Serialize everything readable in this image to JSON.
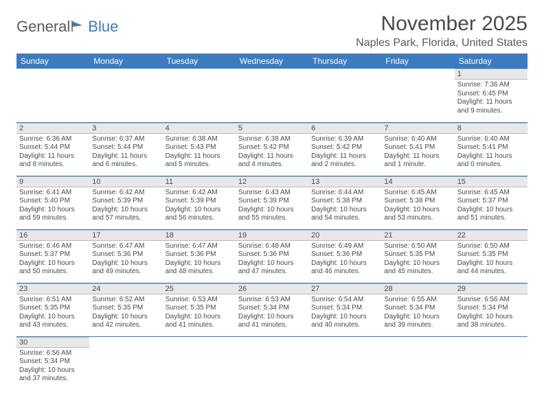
{
  "logo": {
    "text1": "General",
    "text2": "Blue"
  },
  "title": "November 2025",
  "location": "Naples Park, Florida, United States",
  "colors": {
    "header_bg": "#3b7bbf",
    "header_text": "#ffffff",
    "daynum_bg": "#e8e8e8",
    "border": "#3b7bbf",
    "text": "#4a4a4a"
  },
  "day_headers": [
    "Sunday",
    "Monday",
    "Tuesday",
    "Wednesday",
    "Thursday",
    "Friday",
    "Saturday"
  ],
  "weeks": [
    [
      null,
      null,
      null,
      null,
      null,
      null,
      {
        "n": "1",
        "sunrise": "7:36 AM",
        "sunset": "6:45 PM",
        "daylight": "11 hours and 9 minutes."
      }
    ],
    [
      {
        "n": "2",
        "sunrise": "6:36 AM",
        "sunset": "5:44 PM",
        "daylight": "11 hours and 8 minutes."
      },
      {
        "n": "3",
        "sunrise": "6:37 AM",
        "sunset": "5:44 PM",
        "daylight": "11 hours and 6 minutes."
      },
      {
        "n": "4",
        "sunrise": "6:38 AM",
        "sunset": "5:43 PM",
        "daylight": "11 hours and 5 minutes."
      },
      {
        "n": "5",
        "sunrise": "6:38 AM",
        "sunset": "5:42 PM",
        "daylight": "11 hours and 4 minutes."
      },
      {
        "n": "6",
        "sunrise": "6:39 AM",
        "sunset": "5:42 PM",
        "daylight": "11 hours and 2 minutes."
      },
      {
        "n": "7",
        "sunrise": "6:40 AM",
        "sunset": "5:41 PM",
        "daylight": "11 hours and 1 minute."
      },
      {
        "n": "8",
        "sunrise": "6:40 AM",
        "sunset": "5:41 PM",
        "daylight": "11 hours and 0 minutes."
      }
    ],
    [
      {
        "n": "9",
        "sunrise": "6:41 AM",
        "sunset": "5:40 PM",
        "daylight": "10 hours and 59 minutes."
      },
      {
        "n": "10",
        "sunrise": "6:42 AM",
        "sunset": "5:39 PM",
        "daylight": "10 hours and 57 minutes."
      },
      {
        "n": "11",
        "sunrise": "6:42 AM",
        "sunset": "5:39 PM",
        "daylight": "10 hours and 56 minutes."
      },
      {
        "n": "12",
        "sunrise": "6:43 AM",
        "sunset": "5:39 PM",
        "daylight": "10 hours and 55 minutes."
      },
      {
        "n": "13",
        "sunrise": "6:44 AM",
        "sunset": "5:38 PM",
        "daylight": "10 hours and 54 minutes."
      },
      {
        "n": "14",
        "sunrise": "6:45 AM",
        "sunset": "5:38 PM",
        "daylight": "10 hours and 53 minutes."
      },
      {
        "n": "15",
        "sunrise": "6:45 AM",
        "sunset": "5:37 PM",
        "daylight": "10 hours and 51 minutes."
      }
    ],
    [
      {
        "n": "16",
        "sunrise": "6:46 AM",
        "sunset": "5:37 PM",
        "daylight": "10 hours and 50 minutes."
      },
      {
        "n": "17",
        "sunrise": "6:47 AM",
        "sunset": "5:36 PM",
        "daylight": "10 hours and 49 minutes."
      },
      {
        "n": "18",
        "sunrise": "6:47 AM",
        "sunset": "5:36 PM",
        "daylight": "10 hours and 48 minutes."
      },
      {
        "n": "19",
        "sunrise": "6:48 AM",
        "sunset": "5:36 PM",
        "daylight": "10 hours and 47 minutes."
      },
      {
        "n": "20",
        "sunrise": "6:49 AM",
        "sunset": "5:36 PM",
        "daylight": "10 hours and 46 minutes."
      },
      {
        "n": "21",
        "sunrise": "6:50 AM",
        "sunset": "5:35 PM",
        "daylight": "10 hours and 45 minutes."
      },
      {
        "n": "22",
        "sunrise": "6:50 AM",
        "sunset": "5:35 PM",
        "daylight": "10 hours and 44 minutes."
      }
    ],
    [
      {
        "n": "23",
        "sunrise": "6:51 AM",
        "sunset": "5:35 PM",
        "daylight": "10 hours and 43 minutes."
      },
      {
        "n": "24",
        "sunrise": "6:52 AM",
        "sunset": "5:35 PM",
        "daylight": "10 hours and 42 minutes."
      },
      {
        "n": "25",
        "sunrise": "6:53 AM",
        "sunset": "5:35 PM",
        "daylight": "10 hours and 41 minutes."
      },
      {
        "n": "26",
        "sunrise": "6:53 AM",
        "sunset": "5:34 PM",
        "daylight": "10 hours and 41 minutes."
      },
      {
        "n": "27",
        "sunrise": "6:54 AM",
        "sunset": "5:34 PM",
        "daylight": "10 hours and 40 minutes."
      },
      {
        "n": "28",
        "sunrise": "6:55 AM",
        "sunset": "5:34 PM",
        "daylight": "10 hours and 39 minutes."
      },
      {
        "n": "29",
        "sunrise": "6:56 AM",
        "sunset": "5:34 PM",
        "daylight": "10 hours and 38 minutes."
      }
    ],
    [
      {
        "n": "30",
        "sunrise": "6:56 AM",
        "sunset": "5:34 PM",
        "daylight": "10 hours and 37 minutes."
      },
      null,
      null,
      null,
      null,
      null,
      null
    ]
  ],
  "labels": {
    "sunrise": "Sunrise:",
    "sunset": "Sunset:",
    "daylight": "Daylight:"
  }
}
